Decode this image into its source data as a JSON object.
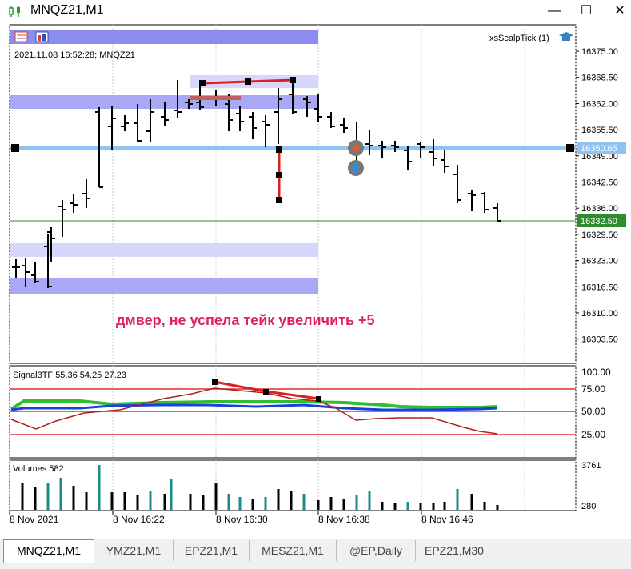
{
  "window": {
    "title": "MNQZ21,M1",
    "minimize": "—",
    "maximize": "☐",
    "close": "✕"
  },
  "chart": {
    "timestamp_label": "2021.11.08 16:52:28; MNQZ21",
    "ea_label": "xsScalpTick (1)",
    "annotation": "дмвер, не успела тейк увеличить +5",
    "current_price": "16332.50",
    "hline_price": "16350.65",
    "price_ticks": [
      "16375.00",
      "16368.50",
      "16362.00",
      "16355.50",
      "16349.00",
      "16342.50",
      "16336.00",
      "16329.50",
      "16323.00",
      "16316.50",
      "16310.00",
      "16303.50"
    ],
    "time_ticks": [
      "8 Nov 2021",
      "8 Nov 16:22",
      "8 Nov 16:30",
      "8 Nov 16:38",
      "8 Nov 16:46"
    ]
  },
  "indicator": {
    "label": "Signal3TF 55.36 54.25 27.23",
    "levels": [
      "100.00",
      "75.00",
      "50.00",
      "25.00"
    ]
  },
  "volumes": {
    "label": "Volumes 582",
    "scale_max": "3761",
    "scale_min": "280"
  },
  "tabs": [
    "MNQZ21,M1",
    "YMZ21,M1",
    "EPZ21,M1",
    "MESZ21,M1",
    "@EP,Daily",
    "EPZ21,M30"
  ],
  "colors": {
    "current_price_line": "#2e8b2e",
    "horizontal_line": "#8fc3f0",
    "zone": "#8c8cf0",
    "annotation": "#e0206a",
    "indicator_green": "#2fbf2f",
    "indicator_blue": "#1b3fe0",
    "indicator_red": "#b02020",
    "level_line": "#e03030",
    "volume_up": "#1a8a8a",
    "volume_down": "#000000"
  }
}
